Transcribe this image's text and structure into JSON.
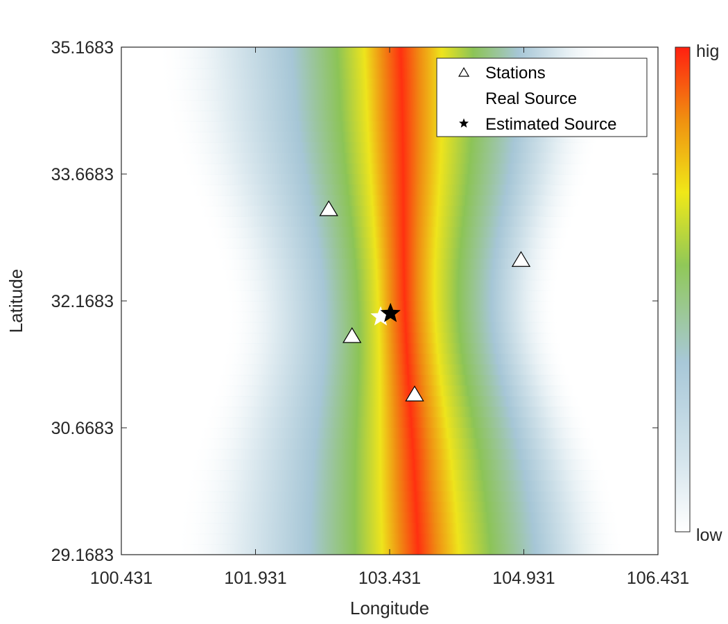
{
  "chart_data": {
    "type": "heatmap",
    "title": "",
    "xlabel": "Longitude",
    "ylabel": "Latitude",
    "xlim": [
      100.431,
      106.431
    ],
    "ylim": [
      29.1683,
      35.1683
    ],
    "xticks": [
      "100.431",
      "101.931",
      "103.431",
      "104.931",
      "106.431"
    ],
    "yticks": [
      "29.1683",
      "30.6683",
      "32.1683",
      "33.6683",
      "35.1683"
    ],
    "grid": false,
    "legend": {
      "placement": "top-right",
      "entries": [
        {
          "label": "Stations",
          "marker": "triangle"
        },
        {
          "label": "Real Source",
          "marker": "star-white"
        },
        {
          "label": "Estimated Source",
          "marker": "star-black"
        }
      ]
    },
    "colorbar": {
      "high_label": "hig",
      "low_label": "low",
      "colors": [
        "#ffffff",
        "#d4e4ec",
        "#a8c8d8",
        "#90c858",
        "#f0e818",
        "#f09010",
        "#ff2010"
      ]
    },
    "stations": [
      {
        "lon": 102.75,
        "lat": 33.25
      },
      {
        "lon": 104.9,
        "lat": 32.65
      },
      {
        "lon": 103.01,
        "lat": 31.75
      },
      {
        "lon": 103.71,
        "lat": 31.06
      }
    ],
    "real_source": {
      "lon": 103.33,
      "lat": 31.98
    },
    "estimated_source": {
      "lon": 103.44,
      "lat": 32.02
    },
    "band": {
      "center_lon_at_top": 103.35,
      "center_lon_at_bottom": 103.55
    }
  }
}
